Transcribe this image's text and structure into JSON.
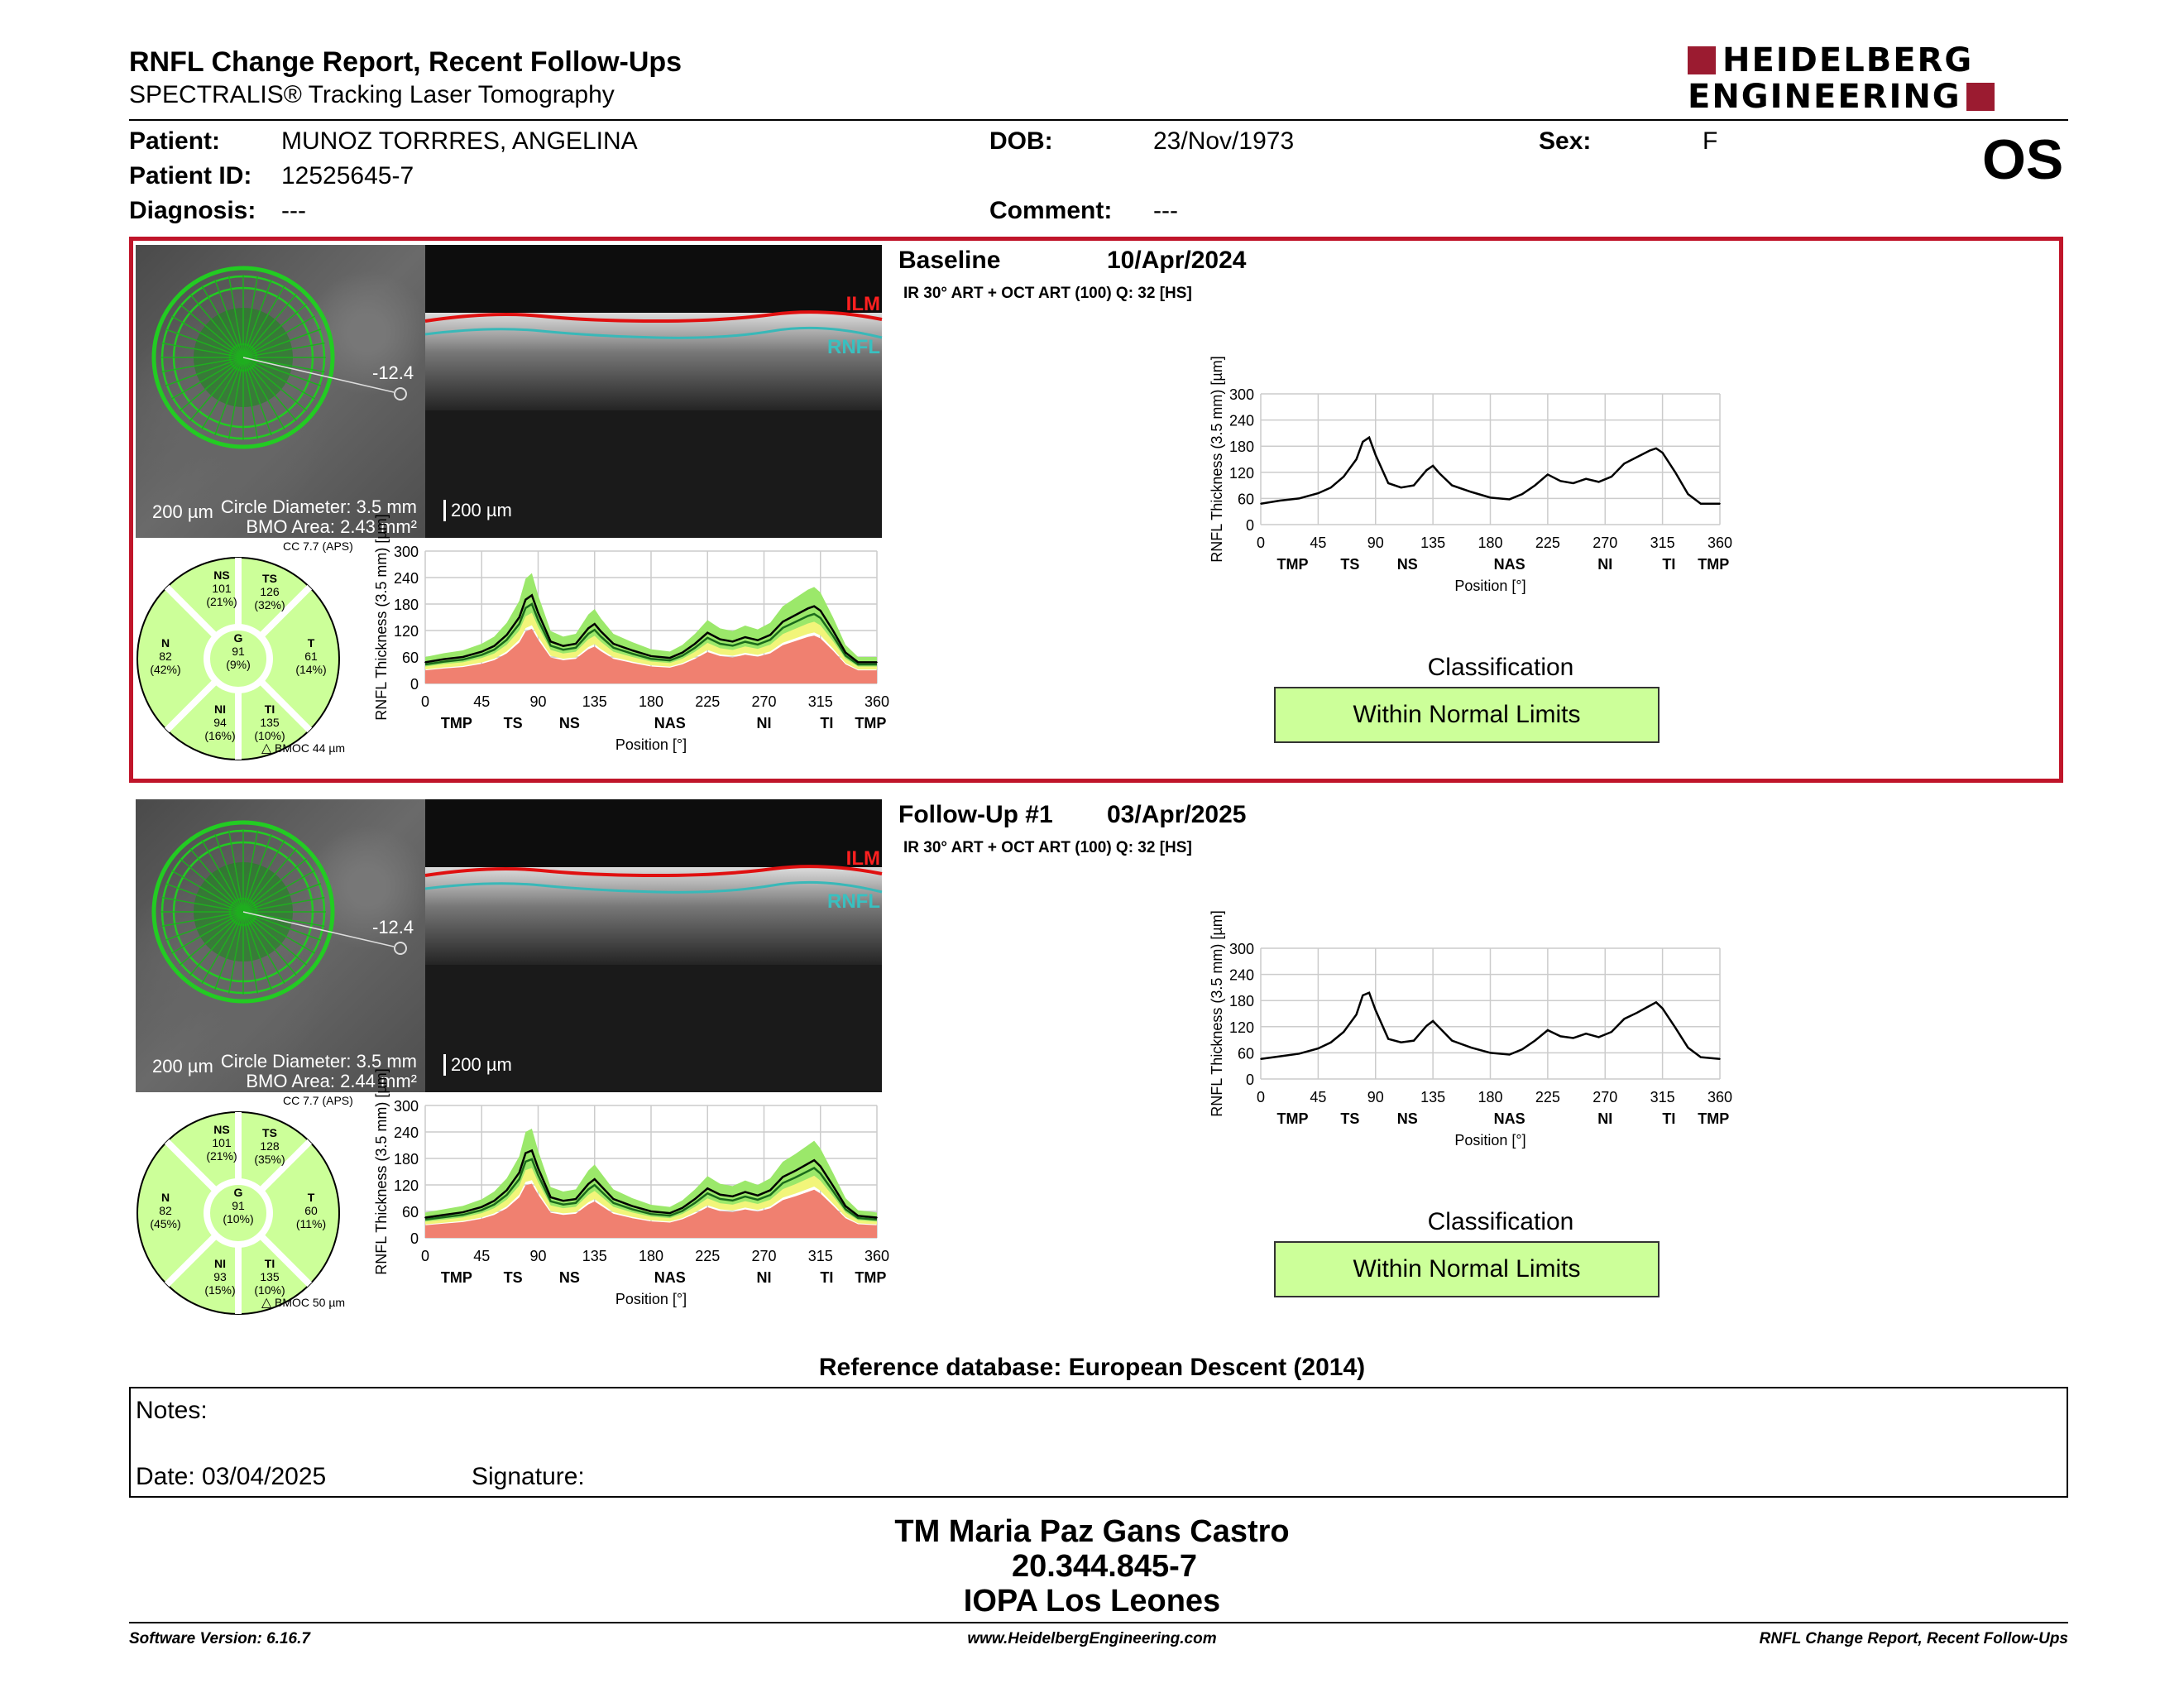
{
  "header": {
    "title": "RNFL Change Report, Recent Follow-Ups",
    "subtitle": "SPECTRALIS® Tracking Laser Tomography",
    "logo_line1": "HEIDELBERG",
    "logo_line2": "ENGINEERING",
    "eye": "OS"
  },
  "patient": {
    "patient_label": "Patient:",
    "patient_value": "MUNOZ TORRRES, ANGELINA",
    "id_label": "Patient ID:",
    "id_value": "12525645-7",
    "diag_label": "Diagnosis:",
    "diag_value": "---",
    "dob_label": "DOB:",
    "dob_value": "23/Nov/1973",
    "comment_label": "Comment:",
    "comment_value": "---",
    "sex_label": "Sex:",
    "sex_value": "F"
  },
  "exams": [
    {
      "name": "Baseline",
      "date": "10/Apr/2024",
      "protocol": "IR 30° ART + OCT ART (100) Q: 32 [HS]",
      "fundus": {
        "angle": "-12.4",
        "scale": "200 µm",
        "circle": "Circle Diameter: 3.5 mm",
        "bmo": "BMO Area: 2.43 mm²"
      },
      "oct": {
        "ilm": "ILM",
        "rnfl": "RNFL",
        "scale": "200 µm"
      },
      "sectors": {
        "cc": "CC 7.7 (APS)",
        "NS": {
          "label": "NS",
          "value": "101",
          "pct": "(21%)"
        },
        "TS": {
          "label": "TS",
          "value": "126",
          "pct": "(32%)"
        },
        "N": {
          "label": "N",
          "value": "82",
          "pct": "(42%)"
        },
        "G": {
          "label": "G",
          "value": "91",
          "pct": "(9%)"
        },
        "T": {
          "label": "T",
          "value": "61",
          "pct": "(14%)"
        },
        "NI": {
          "label": "NI",
          "value": "94",
          "pct": "(16%)"
        },
        "TI": {
          "label": "TI",
          "value": "135",
          "pct": "(10%)"
        },
        "bmoc": "BMOC 44 µm"
      },
      "classification_label": "Classification",
      "classification": "Within Normal Limits"
    },
    {
      "name": "Follow-Up #1",
      "date": "03/Apr/2025",
      "protocol": "IR 30° ART + OCT ART (100) Q: 32 [HS]",
      "fundus": {
        "angle": "-12.4",
        "scale": "200 µm",
        "circle": "Circle Diameter: 3.5 mm",
        "bmo": "BMO Area: 2.44 mm²"
      },
      "oct": {
        "ilm": "ILM",
        "rnfl": "RNFL",
        "scale": "200 µm"
      },
      "sectors": {
        "cc": "CC 7.7 (APS)",
        "NS": {
          "label": "NS",
          "value": "101",
          "pct": "(21%)"
        },
        "TS": {
          "label": "TS",
          "value": "128",
          "pct": "(35%)"
        },
        "N": {
          "label": "N",
          "value": "82",
          "pct": "(45%)"
        },
        "G": {
          "label": "G",
          "value": "91",
          "pct": "(10%)"
        },
        "T": {
          "label": "T",
          "value": "60",
          "pct": "(11%)"
        },
        "NI": {
          "label": "NI",
          "value": "93",
          "pct": "(15%)"
        },
        "TI": {
          "label": "TI",
          "value": "135",
          "pct": "(10%)"
        },
        "bmoc": "BMOC 50 µm"
      },
      "classification_label": "Classification",
      "classification": "Within Normal Limits"
    }
  ],
  "chart_axes": {
    "ylabel": "RNFL Thickness (3.5 mm) [µm]",
    "xlabel": "Position [°]",
    "yticks": [
      "0",
      "60",
      "120",
      "180",
      "240",
      "300"
    ],
    "xticks": [
      "0",
      "45",
      "90",
      "135",
      "180",
      "225",
      "270",
      "315",
      "360"
    ],
    "sectors": [
      "TMP",
      "TS",
      "NS",
      "NAS",
      "NI",
      "TI",
      "TMP"
    ]
  },
  "chart_data": [
    {
      "type": "line",
      "name": "Baseline RNFL profile",
      "x": [
        0,
        15,
        30,
        45,
        55,
        65,
        75,
        80,
        85,
        90,
        100,
        110,
        120,
        130,
        135,
        140,
        150,
        165,
        180,
        195,
        205,
        215,
        225,
        235,
        245,
        255,
        265,
        275,
        285,
        295,
        305,
        310,
        315,
        325,
        335,
        345,
        360
      ],
      "y": [
        48,
        55,
        60,
        72,
        85,
        110,
        150,
        190,
        200,
        160,
        95,
        85,
        90,
        125,
        135,
        118,
        90,
        75,
        62,
        58,
        70,
        90,
        115,
        100,
        95,
        105,
        98,
        110,
        140,
        155,
        170,
        175,
        165,
        120,
        70,
        48,
        48
      ],
      "ylim": [
        0,
        300
      ],
      "xlim": [
        0,
        360
      ]
    },
    {
      "type": "line",
      "name": "Follow-Up RNFL profile",
      "x": [
        0,
        15,
        30,
        45,
        55,
        65,
        75,
        80,
        85,
        90,
        100,
        110,
        120,
        130,
        135,
        140,
        150,
        165,
        180,
        195,
        205,
        215,
        225,
        235,
        245,
        255,
        265,
        275,
        285,
        295,
        305,
        310,
        315,
        325,
        335,
        345,
        360
      ],
      "y": [
        46,
        52,
        58,
        70,
        84,
        108,
        148,
        192,
        198,
        158,
        92,
        84,
        88,
        122,
        133,
        118,
        88,
        72,
        60,
        56,
        68,
        88,
        112,
        98,
        94,
        104,
        96,
        108,
        138,
        152,
        168,
        176,
        162,
        118,
        72,
        50,
        46
      ],
      "ylim": [
        0,
        300
      ],
      "xlim": [
        0,
        360
      ]
    }
  ],
  "reference": "Reference database: European Descent (2014)",
  "notes": {
    "label": "Notes:",
    "date": "Date: 03/04/2025",
    "signature": "Signature:"
  },
  "signer": {
    "line1": "TM Maria Paz Gans Castro",
    "line2": "20.344.845-7",
    "line3": "IOPA Los Leones"
  },
  "footer": {
    "left": "Software Version: 6.16.7",
    "center": "www.HeidelbergEngineering.com",
    "right": "RNFL Change Report, Recent Follow-Ups"
  },
  "colors": {
    "red_frame": "#c0152a",
    "wnl": "#ccff99",
    "green_band": "#9be86a",
    "yellow_band": "#f2f57a",
    "red_band": "#f08070"
  }
}
